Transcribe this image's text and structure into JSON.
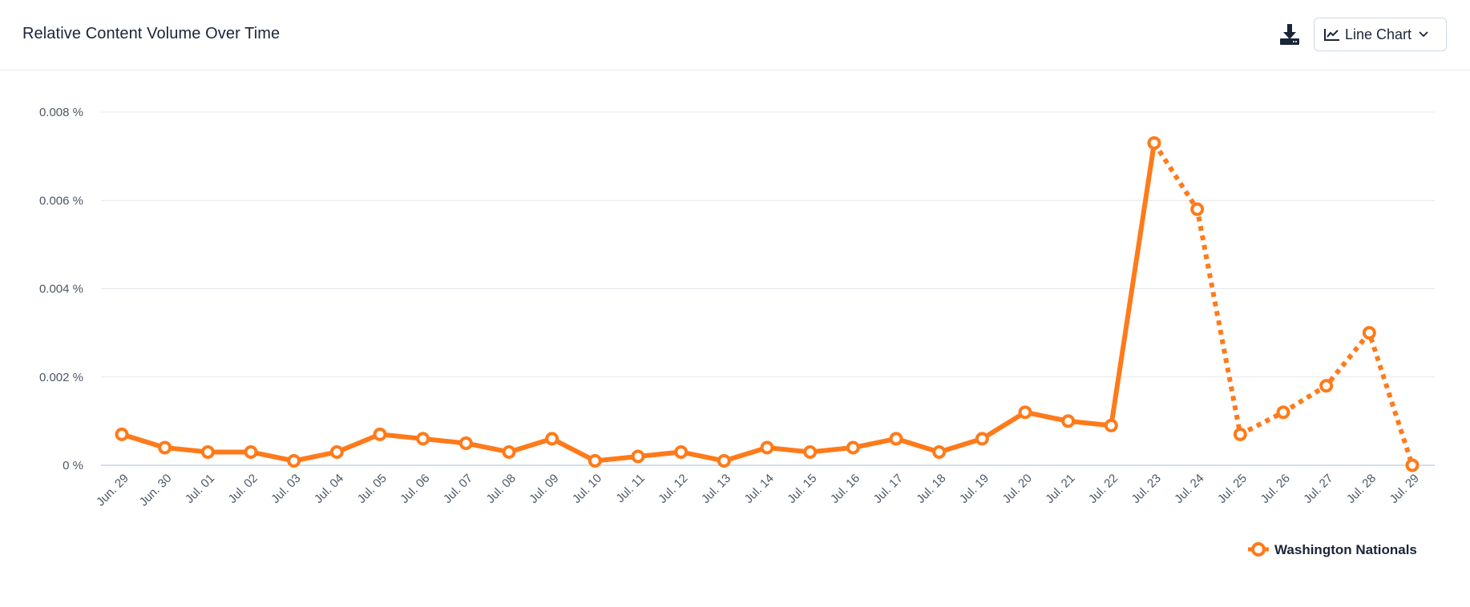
{
  "header": {
    "title": "Relative Content Volume Over Time",
    "chart_type_label": "Line Chart",
    "download_icon": "download-icon",
    "chart_type_icon": "line-chart-icon",
    "dropdown_icon": "chevron-down-icon"
  },
  "colors": {
    "series": "#ff7a1a",
    "grid": "#e3e7ee",
    "axis": "#c9d4e8",
    "tick_text": "#4d5766"
  },
  "chart_data": {
    "type": "line",
    "title": "",
    "xlabel": "",
    "ylabel": "",
    "ylim": [
      0,
      0.008
    ],
    "yticks": [
      0,
      0.002,
      0.004,
      0.006,
      0.008
    ],
    "ytick_labels": [
      "0 %",
      "0.002 %",
      "0.004 %",
      "0.006 %",
      "0.008 %"
    ],
    "grid": true,
    "legend_position": "bottom-right",
    "x": [
      "Jun. 29",
      "Jun. 30",
      "Jul. 01",
      "Jul. 02",
      "Jul. 03",
      "Jul. 04",
      "Jul. 05",
      "Jul. 06",
      "Jul. 07",
      "Jul. 08",
      "Jul. 09",
      "Jul. 10",
      "Jul. 11",
      "Jul. 12",
      "Jul. 13",
      "Jul. 14",
      "Jul. 15",
      "Jul. 16",
      "Jul. 17",
      "Jul. 18",
      "Jul. 19",
      "Jul. 20",
      "Jul. 21",
      "Jul. 22",
      "Jul. 23",
      "Jul. 24",
      "Jul. 25",
      "Jul. 26",
      "Jul. 27",
      "Jul. 28",
      "Jul. 29"
    ],
    "series": [
      {
        "name": "Washington Nationals",
        "values": [
          0.0007,
          0.0004,
          0.0003,
          0.0003,
          0.0001,
          0.0003,
          0.0007,
          0.0006,
          0.0005,
          0.0003,
          0.0006,
          0.0001,
          0.0002,
          0.0003,
          0.0001,
          0.0004,
          0.0003,
          0.0004,
          0.0006,
          0.0003,
          0.0006,
          0.0012,
          0.001,
          0.0009,
          0.0073,
          0.0058,
          0.0007,
          0.0012,
          0.0018,
          0.003,
          0.0
        ],
        "solid_until_index": 24
      }
    ]
  }
}
